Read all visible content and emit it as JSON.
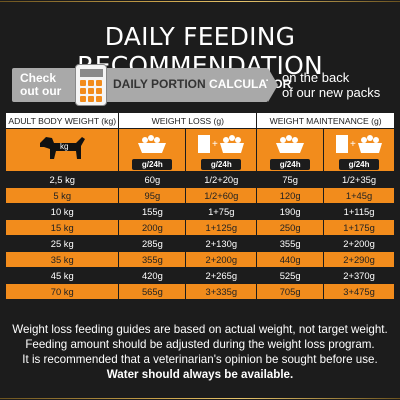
{
  "title": "DAILY FEEDING RECOMMENDATION",
  "banner": {
    "check_line1": "Check",
    "check_line2": "out our",
    "daily_portion": "DAILY PORTION",
    "calculator": "CALCULATOR",
    "back_line1": "on the back",
    "back_line2": "of our new packs"
  },
  "table": {
    "headers": {
      "body_weight": "ADULT BODY WEIGHT (kg)",
      "weight_loss": "WEIGHT LOSS (g)",
      "weight_maintenance": "WEIGHT MAINTENANCE (g)"
    },
    "dog_label": "kg",
    "per_day": "g/24h",
    "rows": [
      [
        "2,5 kg",
        "60g",
        "1/2+20g",
        "75g",
        "1/2+35g"
      ],
      [
        "5 kg",
        "95g",
        "1/2+60g",
        "120g",
        "1+45g"
      ],
      [
        "10 kg",
        "155g",
        "1+75g",
        "190g",
        "1+115g"
      ],
      [
        "15 kg",
        "200g",
        "1+125g",
        "250g",
        "1+175g"
      ],
      [
        "25 kg",
        "285g",
        "2+130g",
        "355g",
        "2+200g"
      ],
      [
        "35 kg",
        "355g",
        "2+200g",
        "440g",
        "2+290g"
      ],
      [
        "45 kg",
        "420g",
        "2+265g",
        "525g",
        "2+370g"
      ],
      [
        "70 kg",
        "565g",
        "3+335g",
        "705g",
        "3+475g"
      ]
    ]
  },
  "footer": {
    "line1": "Weight loss feeding guides are based on actual weight, not target weight.",
    "line2": "Feeding amount should be adjusted during the weight loss program.",
    "line3": "It is recommended that a veterinarian's opinion be sought before use.",
    "line4": "Water should always be available."
  },
  "colors": {
    "background": "#1c1c1c",
    "accent_orange": "#f28c1c",
    "banner_grey": "#a9a9a9",
    "gold": "#c9a24a"
  }
}
